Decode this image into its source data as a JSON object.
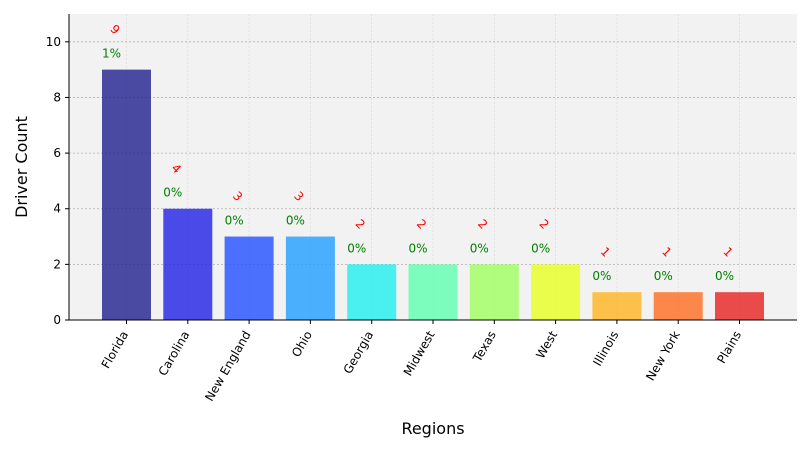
{
  "chart_data": {
    "type": "bar",
    "categories": [
      "Florida",
      "Carolina",
      "New England",
      "Ohio",
      "Georgia",
      "Midwest",
      "Texas",
      "West",
      "Illinois",
      "New York",
      "Plains"
    ],
    "values": [
      9,
      4,
      3,
      3,
      2,
      2,
      2,
      2,
      1,
      1,
      1
    ],
    "count_labels": [
      "9",
      "4",
      "3",
      "3",
      "2",
      "2",
      "2",
      "2",
      "1",
      "1",
      "1"
    ],
    "percent_labels": [
      "1%",
      "0%",
      "0%",
      "0%",
      "0%",
      "0%",
      "0%",
      "0%",
      "0%",
      "0%",
      "0%"
    ],
    "bar_colors": [
      "#1f1f8f",
      "#1f1fe6",
      "#1f4fff",
      "#1f9fff",
      "#1fefef",
      "#5fffaf",
      "#9fff5f",
      "#e6ff1f",
      "#ffb31f",
      "#ff6a1f",
      "#e61f1f"
    ],
    "xlabel": "Regions",
    "ylabel": "Driver Count",
    "ylim": [
      0,
      11
    ],
    "yticks": [
      0,
      2,
      4,
      6,
      8,
      10
    ],
    "grid": true,
    "count_label_color": "#ff0000",
    "percent_label_color": "#008000",
    "plot_background": "#f2f2f2"
  }
}
